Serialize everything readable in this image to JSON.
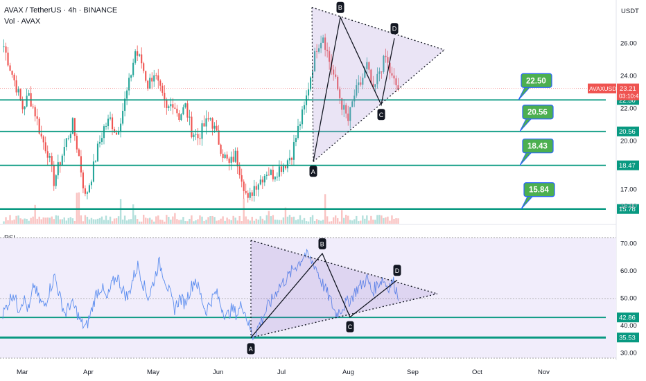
{
  "header": {
    "title": "AVAX / TetherUS · 4h · BINANCE",
    "volume_label": "Vol · AVAX",
    "currency": "USDT",
    "rsi_label": "RSI"
  },
  "chart_data": [
    {
      "type": "candlestick",
      "symbol": "AVAXUSDT",
      "last_price": "23.21",
      "countdown": "03:10:42",
      "price_axis_ticks": [
        "26.00",
        "24.00",
        "22.00",
        "20.00",
        "17.00"
      ],
      "partial_tick": "16.00",
      "ylim": [
        15.0,
        28.4
      ],
      "months": [
        "Mar",
        "Apr",
        "May",
        "Jun",
        "Jul",
        "Aug",
        "Sep",
        "Oct",
        "Nov"
      ],
      "closes_approx": [
        25.8,
        24.5,
        23.3,
        22.0,
        22.8,
        21.7,
        20.2,
        19.3,
        17.5,
        18.7,
        20.0,
        21.0,
        19.0,
        16.5,
        17.8,
        19.5,
        20.8,
        21.3,
        20.4,
        21.9,
        23.5,
        25.5,
        24.8,
        23.4,
        24.2,
        23.0,
        21.8,
        22.4,
        21.5,
        22.1,
        20.6,
        20.2,
        20.9,
        21.4,
        20.3,
        19.2,
        18.5,
        19.1,
        17.8,
        16.2,
        17.2,
        17.6,
        18.1,
        17.9,
        18.3,
        18.6,
        19.2,
        20.7,
        22.0,
        24.0,
        25.8,
        26.5,
        24.9,
        23.6,
        22.2,
        21.2,
        22.8,
        23.5,
        24.6,
        22.9,
        24.3,
        25.1,
        23.8,
        23.2
      ],
      "support_levels": [
        {
          "label": "22.50",
          "value": 22.5
        },
        {
          "label": "20.56",
          "value": 20.56
        },
        {
          "label": "18.47",
          "value": 18.47
        },
        {
          "label": "15.78",
          "value": 15.78
        }
      ],
      "callouts": [
        "22.50",
        "20.56",
        "18.43",
        "15.84"
      ],
      "pattern_points": [
        {
          "label": "A",
          "value": 18.7
        },
        {
          "label": "B",
          "value": 27.6
        },
        {
          "label": "C",
          "value": 22.2
        },
        {
          "label": "D",
          "value": 26.3
        }
      ],
      "colors": {
        "up": "#26a69a",
        "down": "#ef5350",
        "level": "#089981",
        "callout": "#4caf50",
        "callout_border": "#2962ff",
        "triangle": "#b39ddb"
      }
    },
    {
      "type": "line",
      "name": "RSI",
      "axis_ticks": [
        "70.00",
        "60.00",
        "50.00",
        "40.00",
        "30.00"
      ],
      "ylim": [
        28,
        72
      ],
      "values_approx": [
        44,
        48,
        52,
        46,
        50,
        45,
        55,
        49,
        47,
        53,
        58,
        50,
        44,
        48,
        46,
        41,
        39,
        45,
        52,
        54,
        49,
        55,
        58,
        53,
        50,
        57,
        62,
        55,
        50,
        56,
        63,
        58,
        52,
        46,
        50,
        48,
        53,
        57,
        51,
        45,
        49,
        52,
        47,
        43,
        46,
        44,
        48,
        42,
        36,
        39,
        43,
        47,
        50,
        54,
        56,
        58,
        61,
        63,
        66,
        64,
        62,
        57,
        53,
        49,
        44,
        46,
        48,
        50,
        53,
        55,
        57,
        52,
        55,
        57,
        54,
        56,
        51
      ],
      "levels": [
        {
          "label": "42.86",
          "value": 42.86
        },
        {
          "label": "35.53",
          "value": 35.53
        }
      ],
      "pattern_points": [
        {
          "label": "A",
          "value": 35.5
        },
        {
          "label": "B",
          "value": 66.2
        },
        {
          "label": "C",
          "value": 43.0
        },
        {
          "label": "D",
          "value": 56.5
        }
      ],
      "colors": {
        "line": "#5b8def",
        "band": "#f1edfb",
        "level": "#089981"
      }
    }
  ]
}
